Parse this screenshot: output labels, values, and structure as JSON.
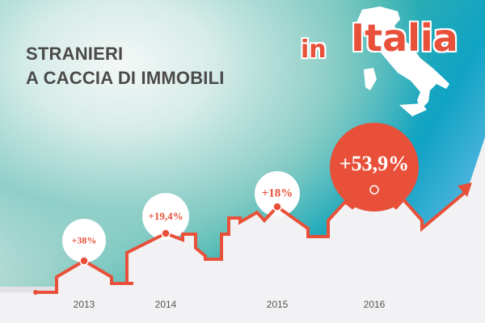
{
  "header": {
    "title_line1": "STRANIERI",
    "title_line2": "A CACCIA DI IMMOBILI",
    "brand_in": "in",
    "brand_italia": "Italia"
  },
  "colors": {
    "accent": "#e8503a",
    "title": "#4a4a4a",
    "background_teal": "#38b2ad",
    "background_blue": "#10a3c4"
  },
  "chart_data": {
    "type": "line",
    "categories": [
      "2013",
      "2014",
      "2015",
      "2016"
    ],
    "values": [
      38,
      19.4,
      18,
      53.9
    ],
    "data_labels": [
      "+38%",
      "+19,4%",
      "+18%",
      "+53,9%"
    ],
    "title": "",
    "xlabel": "",
    "ylabel": ""
  }
}
